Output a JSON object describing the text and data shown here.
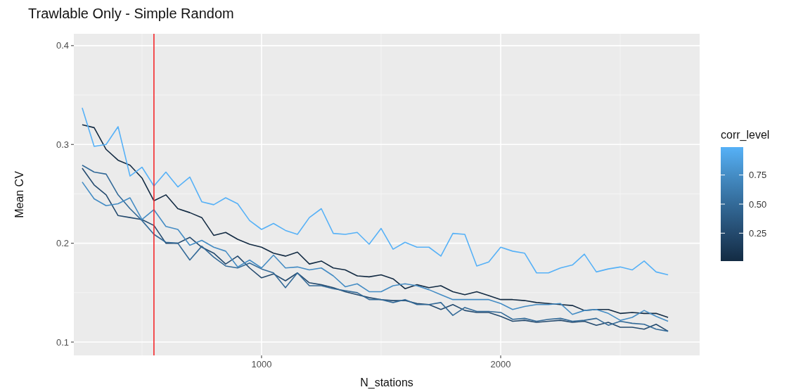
{
  "chart_data": {
    "type": "line",
    "title": "Trawlable Only - Simple Random",
    "xlabel": "N_stations",
    "ylabel": "Mean CV",
    "x": [
      250,
      300,
      350,
      400,
      450,
      500,
      550,
      600,
      650,
      700,
      750,
      800,
      850,
      900,
      950,
      1000,
      1050,
      1100,
      1150,
      1200,
      1250,
      1300,
      1350,
      1400,
      1450,
      1500,
      1550,
      1600,
      1650,
      1700,
      1750,
      1800,
      1850,
      1900,
      1950,
      2000,
      2050,
      2100,
      2150,
      2200,
      2250,
      2300,
      2350,
      2400,
      2450,
      2500,
      2550,
      2600,
      2650,
      2700
    ],
    "series": [
      {
        "color": "#132b43",
        "values": [
          0.32,
          0.317,
          0.295,
          0.284,
          0.279,
          0.266,
          0.243,
          0.249,
          0.235,
          0.231,
          0.226,
          0.208,
          0.211,
          0.204,
          0.199,
          0.196,
          0.19,
          0.187,
          0.191,
          0.179,
          0.182,
          0.175,
          0.173,
          0.167,
          0.166,
          0.168,
          0.164,
          0.154,
          0.158,
          0.155,
          0.157,
          0.151,
          0.148,
          0.151,
          0.147,
          0.143,
          0.143,
          0.142,
          0.14,
          0.139,
          0.138,
          0.137,
          0.132,
          0.133,
          0.133,
          0.129,
          0.13,
          0.129,
          0.129,
          0.125
        ]
      },
      {
        "color": "#244a6e",
        "values": [
          0.276,
          0.259,
          0.249,
          0.228,
          0.226,
          0.224,
          0.218,
          0.2,
          0.2,
          0.206,
          0.196,
          0.19,
          0.179,
          0.187,
          0.175,
          0.165,
          0.169,
          0.162,
          0.17,
          0.16,
          0.158,
          0.155,
          0.151,
          0.148,
          0.145,
          0.143,
          0.142,
          0.142,
          0.139,
          0.138,
          0.133,
          0.138,
          0.132,
          0.13,
          0.13,
          0.126,
          0.121,
          0.122,
          0.12,
          0.121,
          0.122,
          0.12,
          0.121,
          0.117,
          0.12,
          0.115,
          0.115,
          0.113,
          0.118,
          0.111
        ]
      },
      {
        "color": "#336a98",
        "values": [
          0.279,
          0.272,
          0.27,
          0.249,
          0.235,
          0.223,
          0.209,
          0.201,
          0.2,
          0.183,
          0.197,
          0.186,
          0.177,
          0.175,
          0.18,
          0.174,
          0.17,
          0.155,
          0.17,
          0.157,
          0.157,
          0.154,
          0.152,
          0.15,
          0.143,
          0.143,
          0.14,
          0.143,
          0.138,
          0.138,
          0.14,
          0.127,
          0.135,
          0.131,
          0.131,
          0.13,
          0.123,
          0.124,
          0.121,
          0.123,
          0.124,
          0.121,
          0.122,
          0.124,
          0.117,
          0.121,
          0.119,
          0.118,
          0.113,
          0.111
        ]
      },
      {
        "color": "#448cc4",
        "values": [
          0.262,
          0.245,
          0.238,
          0.24,
          0.246,
          0.224,
          0.234,
          0.217,
          0.214,
          0.198,
          0.203,
          0.196,
          0.192,
          0.176,
          0.183,
          0.175,
          0.188,
          0.175,
          0.176,
          0.173,
          0.175,
          0.167,
          0.156,
          0.159,
          0.151,
          0.151,
          0.157,
          0.159,
          0.157,
          0.153,
          0.148,
          0.143,
          0.143,
          0.143,
          0.143,
          0.139,
          0.133,
          0.136,
          0.138,
          0.138,
          0.139,
          0.128,
          0.132,
          0.133,
          0.129,
          0.122,
          0.125,
          0.132,
          0.126,
          0.121
        ]
      },
      {
        "color": "#56b1f7",
        "values": [
          0.337,
          0.298,
          0.3,
          0.318,
          0.268,
          0.277,
          0.258,
          0.272,
          0.257,
          0.267,
          0.242,
          0.239,
          0.246,
          0.24,
          0.223,
          0.214,
          0.22,
          0.213,
          0.209,
          0.226,
          0.235,
          0.21,
          0.209,
          0.211,
          0.199,
          0.215,
          0.194,
          0.201,
          0.196,
          0.196,
          0.187,
          0.21,
          0.209,
          0.177,
          0.181,
          0.196,
          0.192,
          0.19,
          0.17,
          0.17,
          0.175,
          0.178,
          0.189,
          0.171,
          0.174,
          0.176,
          0.173,
          0.182,
          0.171,
          0.168
        ]
      }
    ],
    "xlim": [
      215,
      2832
    ],
    "ylim": [
      0.0865,
      0.412
    ],
    "xticks": [
      1000,
      2000
    ],
    "yticks": [
      0.1,
      0.2,
      0.3,
      0.4
    ],
    "grid": true,
    "clabel": "corr_level",
    "clim": [
      0.01,
      0.99
    ],
    "cticks": [
      {
        "value": 0.25,
        "label": "0.25"
      },
      {
        "value": 0.5,
        "label": "0.50"
      },
      {
        "value": 0.75,
        "label": "0.75"
      }
    ],
    "ref_lines": [
      {
        "axis": "x",
        "value": 550,
        "color": "#f4262a"
      }
    ]
  }
}
